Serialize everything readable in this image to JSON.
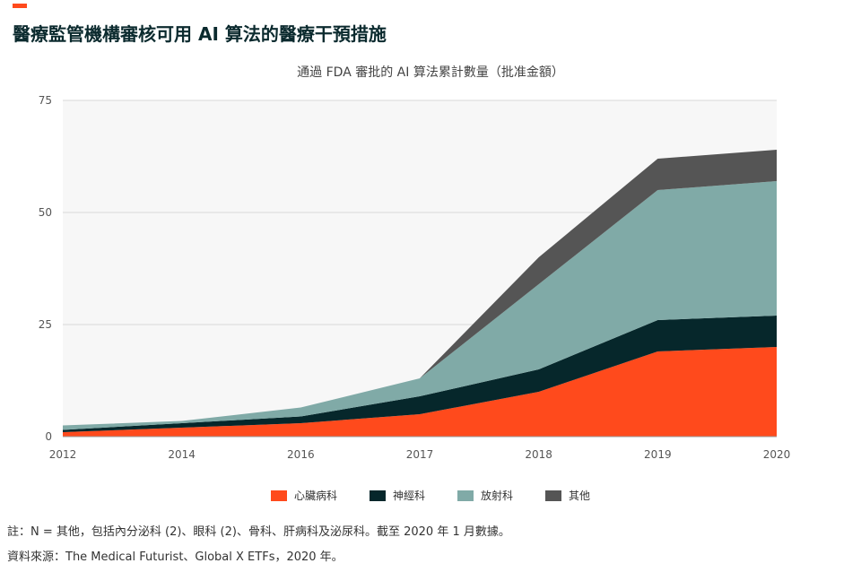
{
  "header": {
    "title": "醫療監管機構審核可用 AI 算法的醫療干預措施"
  },
  "chart_data": {
    "type": "area",
    "stacked": true,
    "title": "通過 FDA 審批的 AI 算法累計數量（批准金額）",
    "x": [
      "2012",
      "2014",
      "2016",
      "2017",
      "2018",
      "2019",
      "2020"
    ],
    "ylim": [
      0,
      75
    ],
    "yticks": [
      0,
      25,
      50,
      75
    ],
    "grid": true,
    "legend_position": "bottom",
    "series": [
      {
        "name": "心臟病科",
        "color": "#ff4a1c",
        "values": [
          1,
          2,
          3,
          5,
          10,
          19,
          20
        ]
      },
      {
        "name": "神經科",
        "color": "#06272b",
        "values": [
          0.5,
          1,
          1.5,
          4,
          5,
          7,
          7
        ]
      },
      {
        "name": "放射科",
        "color": "#80aaa7",
        "values": [
          1,
          0.5,
          2,
          4,
          19,
          29,
          30
        ]
      },
      {
        "name": "其他",
        "color": "#555555",
        "values": [
          0,
          0,
          0,
          0,
          6,
          7,
          7
        ]
      }
    ]
  },
  "footnotes": {
    "note": "註：N = 其他，包括內分泌科 (2)、眼科 (2)、骨科、肝病科及泌尿科。截至 2020 年 1 月數據。",
    "source": "資料來源：The Medical Futurist、Global X ETFs，2020 年。"
  }
}
